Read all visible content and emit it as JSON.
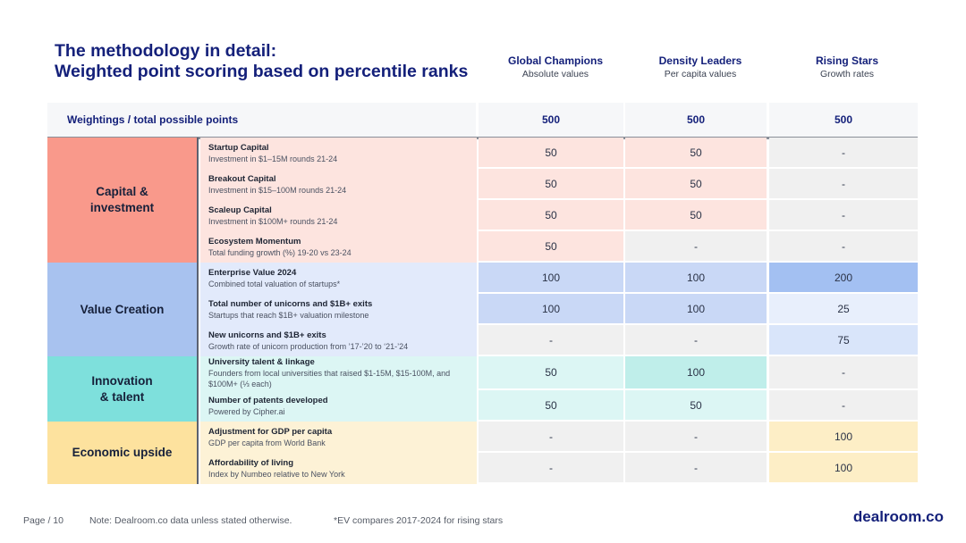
{
  "title": {
    "line1": "The methodology in detail:",
    "line2": "Weighted point scoring based on percentile ranks"
  },
  "columns": [
    {
      "name": "Global Champions",
      "sub": "Absolute values"
    },
    {
      "name": "Density Leaders",
      "sub": "Per capita values"
    },
    {
      "name": "Rising Stars",
      "sub": "Growth rates"
    }
  ],
  "weights": {
    "label": "Weightings / total possible points",
    "values": [
      "500",
      "500",
      "500"
    ]
  },
  "groups": [
    {
      "name": "Capital &\ninvestment",
      "color": "#f9998b"
    },
    {
      "name": "Value Creation",
      "color": "#a8c2ef"
    },
    {
      "name": "Innovation\n& talent",
      "color": "#7ee0dc"
    },
    {
      "name": "Economic upside",
      "color": "#fde29e"
    }
  ],
  "rows": [
    {
      "title": "Startup Capital",
      "desc": "Investment in $1–15M rounds 21-24",
      "values": [
        "50",
        "50",
        "-"
      ]
    },
    {
      "title": "Breakout Capital",
      "desc": "Investment in $15–100M rounds 21-24",
      "values": [
        "50",
        "50",
        "-"
      ]
    },
    {
      "title": "Scaleup Capital",
      "desc": "Investment in $100M+ rounds 21-24",
      "values": [
        "50",
        "50",
        "-"
      ]
    },
    {
      "title": "Ecosystem Momentum",
      "desc": "Total funding growth (%) 19-20 vs 23-24",
      "values": [
        "50",
        "-",
        "-"
      ]
    },
    {
      "title": "Enterprise Value 2024",
      "desc": "Combined total valuation of startups*",
      "values": [
        "100",
        "100",
        "200"
      ]
    },
    {
      "title": "Total number of unicorns and $1B+ exits",
      "desc": "Startups that reach $1B+ valuation milestone",
      "values": [
        "100",
        "100",
        "25"
      ]
    },
    {
      "title": "New unicorns and $1B+ exits",
      "desc": "Growth rate of unicorn production from ’17-’20 to ‘21-’24",
      "values": [
        "-",
        "-",
        "75"
      ]
    },
    {
      "title": "University talent & linkage",
      "desc": "Founders from local universities that raised $1-15M, $15-100M, and $100M+ (⅓ each)",
      "values": [
        "50",
        "100",
        "-"
      ]
    },
    {
      "title": "Number of patents developed",
      "desc": "Powered by Cipher.ai",
      "values": [
        "50",
        "50",
        "-"
      ]
    },
    {
      "title": "Adjustment for GDP per capita",
      "desc": "GDP per capita from World Bank",
      "values": [
        "-",
        "-",
        "100"
      ]
    },
    {
      "title": "Affordability of living",
      "desc": "Index by Numbeo relative to New York",
      "values": [
        "-",
        "-",
        "100"
      ]
    }
  ],
  "footer": {
    "page": "Page / 10",
    "note": "Note: Dealroom.co data unless stated otherwise.",
    "ev_note": "*EV compares 2017-2024 for rising stars",
    "brand": "dealroom.co"
  }
}
